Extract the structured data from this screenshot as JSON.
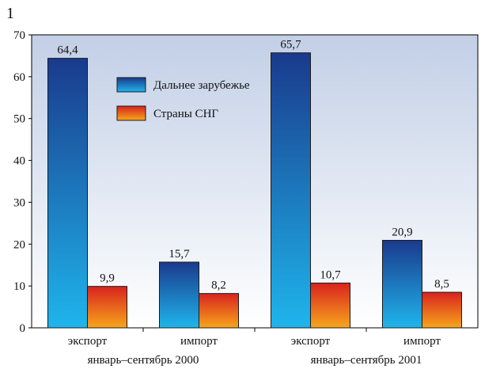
{
  "figure_number": "1",
  "chart_data": {
    "type": "bar",
    "groups": [
      "январь–сентябрь 2000",
      "январь–сентябрь 2001"
    ],
    "categories": [
      "экспорт",
      "импорт",
      "экспорт",
      "импорт"
    ],
    "category_group": [
      0,
      0,
      1,
      1
    ],
    "series": [
      {
        "name": "Дальнее зарубежье",
        "values": [
          64.4,
          15.7,
          65.7,
          20.9
        ],
        "labels": [
          "64,4",
          "15,7",
          "65,7",
          "20,9"
        ],
        "gradient": [
          "#1a3a8c",
          "#1fb5ec"
        ]
      },
      {
        "name": "Страны СНГ",
        "values": [
          9.9,
          8.2,
          10.7,
          8.5
        ],
        "labels": [
          "9,9",
          "8,2",
          "10,7",
          "8,5"
        ],
        "gradient": [
          "#d8231e",
          "#f7a61c"
        ]
      }
    ],
    "yticks": [
      0,
      10,
      20,
      30,
      40,
      50,
      60,
      70
    ],
    "ylim": [
      0,
      70
    ],
    "title": "",
    "xlabel": "",
    "ylabel": "",
    "grid": false,
    "legend_position": "top-center",
    "plot_background": [
      "#c2cfe6",
      "#ffffff"
    ]
  }
}
